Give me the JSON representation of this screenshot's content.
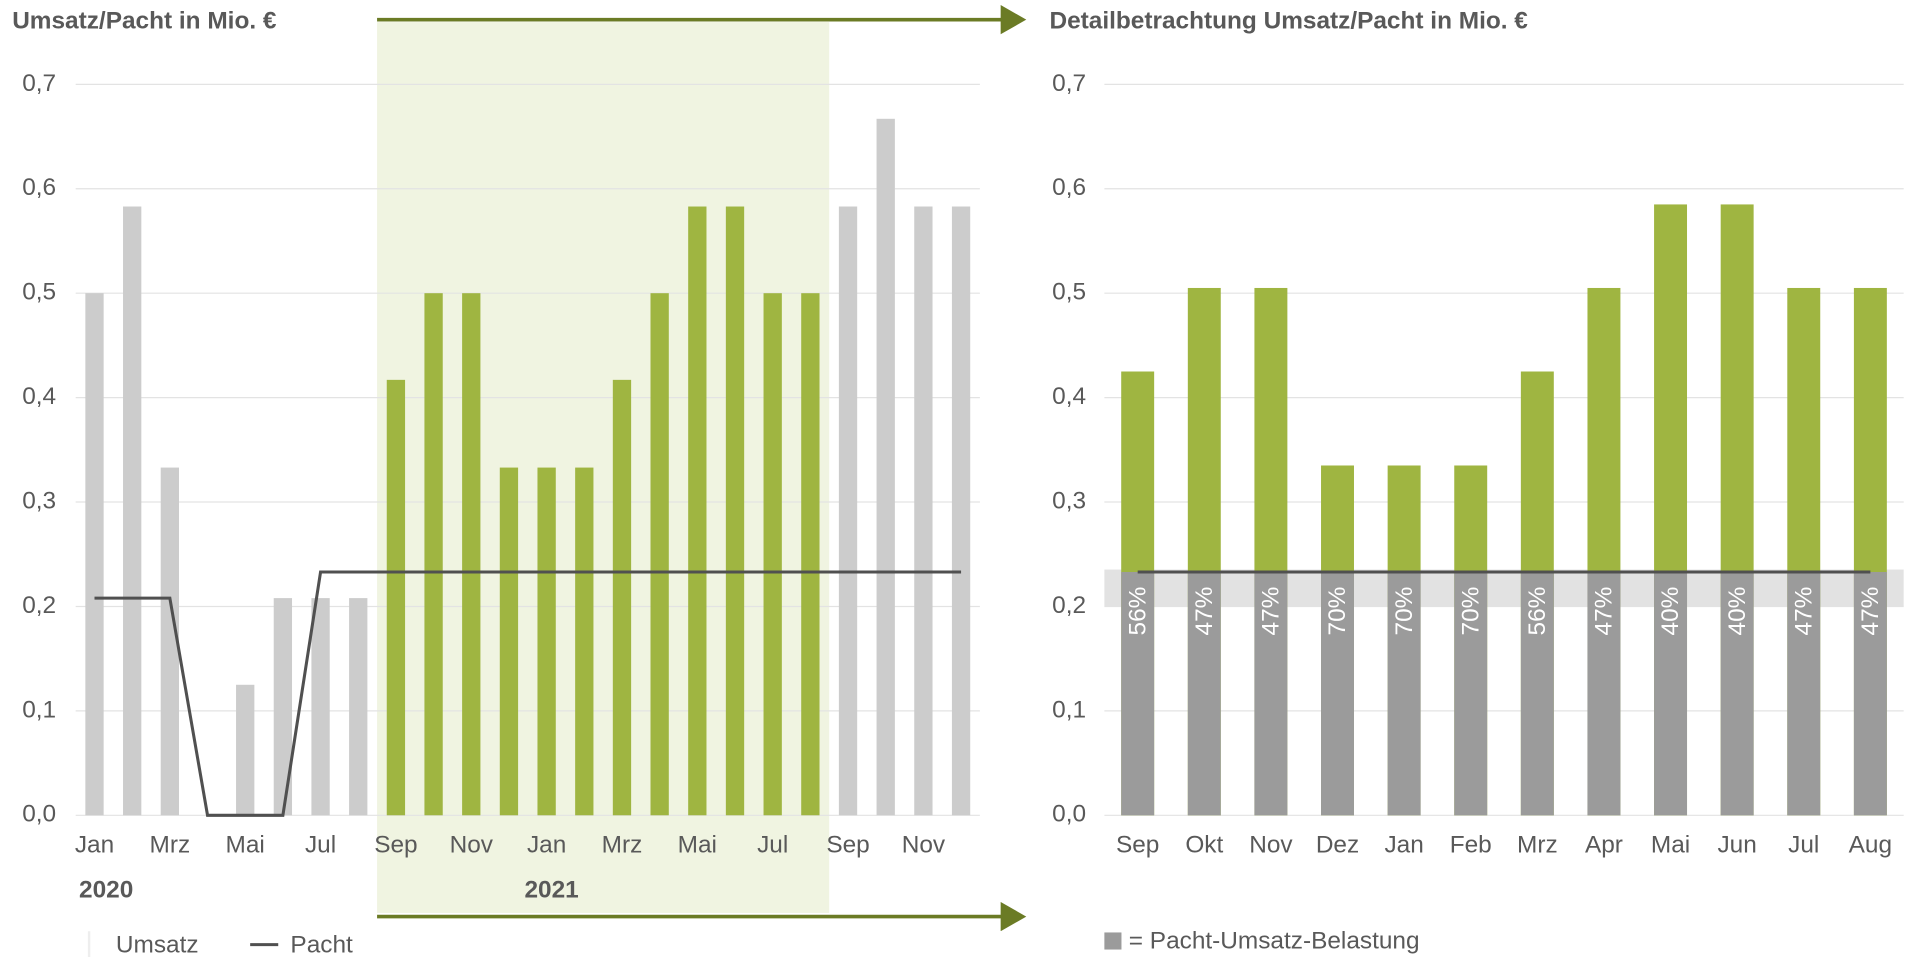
{
  "chart_data": [
    {
      "type": "bar_line",
      "title": "Umsatz/Pacht in Mio. €",
      "categories": [
        "Jan",
        null,
        "Mrz",
        null,
        "Mai",
        null,
        "Jul",
        null,
        "Sep",
        null,
        "Nov",
        null,
        "Jan",
        null,
        "Mrz",
        null,
        "Mai",
        null,
        "Jul",
        null,
        "Sep",
        null,
        "Nov",
        null
      ],
      "annotations": [
        "2020",
        "2021"
      ],
      "series": [
        {
          "name": "Umsatz",
          "kind": "bar",
          "color": "#cccccc",
          "values": [
            0.5,
            0.583,
            0.333,
            0,
            0.125,
            0.208,
            0.208,
            0.208,
            0.417,
            0.5,
            0.5,
            0.333,
            0.333,
            0.333,
            0.417,
            0.5,
            0.583,
            0.583,
            0.5,
            0.5,
            0.583,
            0.667,
            0.583,
            0.583
          ],
          "colors": [
            "#cccccc",
            "#cccccc",
            "#cccccc",
            "#cccccc",
            "#cccccc",
            "#cccccc",
            "#cccccc",
            "#cccccc",
            "#9fb541",
            "#9fb541",
            "#9fb541",
            "#9fb541",
            "#9fb541",
            "#9fb541",
            "#9fb541",
            "#9fb541",
            "#9fb541",
            "#9fb541",
            "#9fb541",
            "#9fb541",
            "#cccccc",
            "#cccccc",
            "#cccccc",
            "#cccccc"
          ]
        },
        {
          "name": "Pacht",
          "kind": "line",
          "color": "#505050",
          "values": [
            0.208,
            0.208,
            0.208,
            0,
            0,
            0,
            0.233,
            0.233,
            0.233,
            0.233,
            0.233,
            0.233,
            0.233,
            0.233,
            0.233,
            0.233,
            0.233,
            0.233,
            0.233,
            0.233,
            0.233,
            0.233,
            0.233,
            0.233
          ]
        }
      ],
      "ylim": [
        0,
        0.7
      ],
      "yticks": [
        {
          "value": 0,
          "label": "0,0"
        },
        {
          "value": 0.1,
          "label": "0,1"
        },
        {
          "value": 0.2,
          "label": "0,2"
        },
        {
          "value": 0.3,
          "label": "0,3"
        },
        {
          "value": 0.4,
          "label": "0,4"
        },
        {
          "value": 0.5,
          "label": "0,5"
        },
        {
          "value": 0.6,
          "label": "0,6"
        },
        {
          "value": 0.7,
          "label": "0,7"
        }
      ],
      "grid": true
    },
    {
      "type": "bar_detail",
      "title": "Detailbetrachtung Umsatz/Pacht in Mio. €",
      "categories": [
        "Sep",
        "Okt",
        "Nov",
        "Dez",
        "Jan",
        "Feb",
        "Mrz",
        "Apr",
        "Mai",
        "Jun",
        "Jul",
        "Aug"
      ],
      "series": [
        {
          "name": "Umsatz",
          "kind": "bar",
          "color": "#9fb541",
          "values": [
            0.425,
            0.505,
            0.505,
            0.335,
            0.335,
            0.335,
            0.425,
            0.505,
            0.585,
            0.585,
            0.505,
            0.505
          ]
        },
        {
          "name": "Pacht",
          "kind": "line",
          "color": "#505050",
          "values": [
            0.233,
            0.233,
            0.233,
            0.233,
            0.233,
            0.233,
            0.233,
            0.233,
            0.233,
            0.233,
            0.233,
            0.233
          ]
        },
        {
          "name": "= Pacht-Umsatz-Belastung",
          "kind": "bar",
          "color": "#9b9b9b",
          "values": [
            56,
            47,
            47,
            70,
            70,
            70,
            56,
            47,
            40,
            40,
            47,
            47
          ],
          "value_labels": [
            "56%",
            "47%",
            "47%",
            "70%",
            "70%",
            "70%",
            "56%",
            "47%",
            "40%",
            "40%",
            "47%",
            "47%"
          ]
        }
      ],
      "ylim": [
        0,
        0.7
      ],
      "yticks": [
        {
          "value": 0,
          "label": "0,0"
        },
        {
          "value": 0.1,
          "label": "0,1"
        },
        {
          "value": 0.2,
          "label": "0,2"
        },
        {
          "value": 0.3,
          "label": "0,3"
        },
        {
          "value": 0.4,
          "label": "0,4"
        },
        {
          "value": 0.5,
          "label": "0,5"
        },
        {
          "value": 0.6,
          "label": "0,6"
        },
        {
          "value": 0.7,
          "label": "0,7"
        }
      ],
      "grid": true
    }
  ]
}
